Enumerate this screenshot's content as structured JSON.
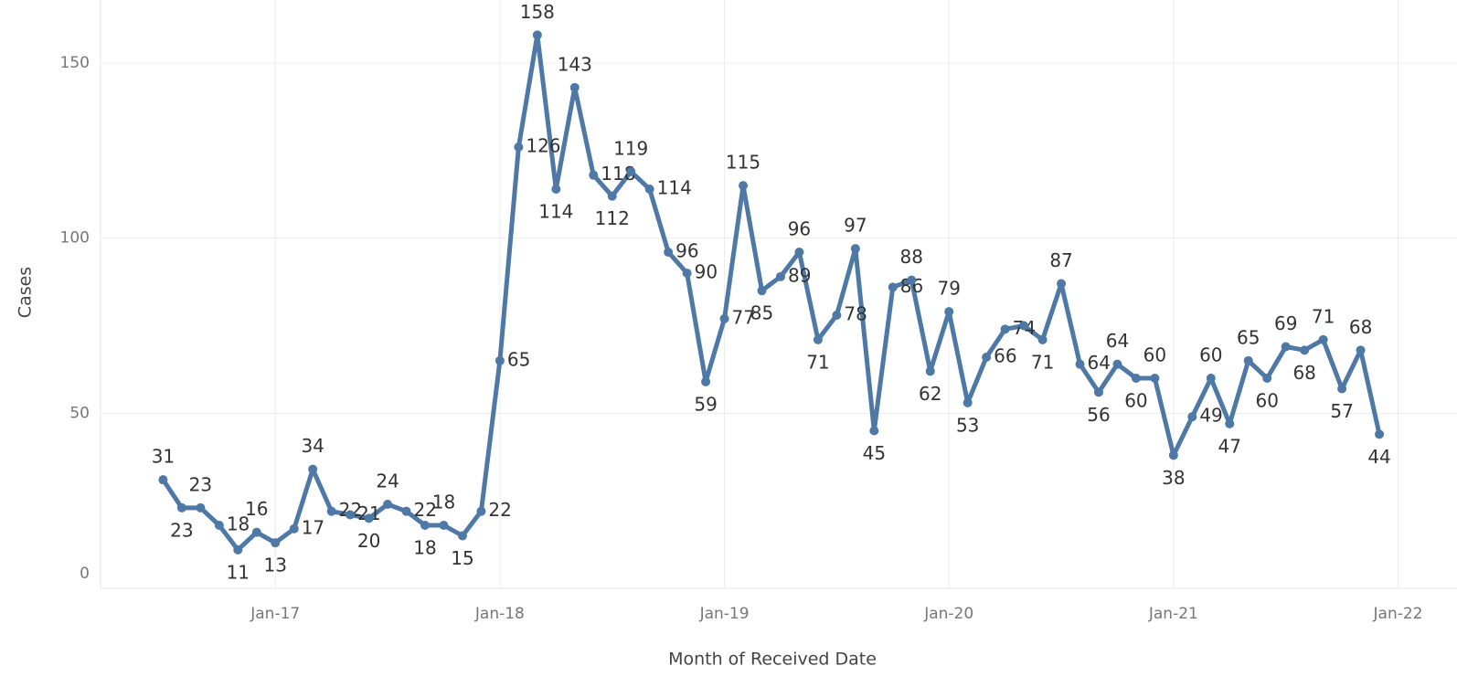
{
  "chart_data": {
    "type": "line",
    "x_label": "Month of Received Date",
    "y_label": "Cases",
    "x": [
      "2016-07",
      "2016-08",
      "2016-09",
      "2016-10",
      "2016-11",
      "2016-12",
      "2017-01",
      "2017-02",
      "2017-03",
      "2017-04",
      "2017-05",
      "2017-06",
      "2017-07",
      "2017-08",
      "2017-09",
      "2017-10",
      "2017-11",
      "2017-12",
      "2018-01",
      "2018-02",
      "2018-03",
      "2018-04",
      "2018-05",
      "2018-06",
      "2018-07",
      "2018-08",
      "2018-09",
      "2018-10",
      "2018-11",
      "2018-12",
      "2019-01",
      "2019-02",
      "2019-03",
      "2019-04",
      "2019-05",
      "2019-06",
      "2019-07",
      "2019-08",
      "2019-09",
      "2019-10",
      "2019-11",
      "2019-12",
      "2020-01",
      "2020-02",
      "2020-03",
      "2020-04",
      "2020-05",
      "2020-06",
      "2020-07",
      "2020-08",
      "2020-09",
      "2020-10",
      "2020-11",
      "2020-12",
      "2021-01",
      "2021-02",
      "2021-03",
      "2021-04",
      "2021-05",
      "2021-06",
      "2021-07",
      "2021-08",
      "2021-09",
      "2021-10",
      "2021-11",
      "2021-12"
    ],
    "series": [
      {
        "name": "Cases",
        "color": "#4e79a7",
        "values": [
          31,
          23,
          23,
          18,
          11,
          16,
          13,
          17,
          34,
          22,
          21,
          20,
          24,
          22,
          18,
          18,
          15,
          22,
          65,
          126,
          158,
          114,
          143,
          118,
          112,
          119,
          114,
          96,
          90,
          59,
          77,
          115,
          85,
          89,
          96,
          71,
          78,
          97,
          45,
          86,
          88,
          62,
          79,
          53,
          66,
          74,
          75,
          71,
          87,
          64,
          56,
          64,
          60,
          60,
          38,
          49,
          60,
          47,
          65,
          60,
          69,
          68,
          71,
          57,
          68,
          44
        ],
        "value_labels": [
          "31",
          "23",
          "23",
          "18",
          "11",
          "16",
          "13",
          "17",
          "34",
          "22",
          "21",
          "20",
          "24",
          "22",
          "18",
          "18",
          "15",
          "22",
          "65",
          "126",
          "158",
          "114",
          "143",
          "118",
          "112",
          "119",
          "114",
          "96",
          "90",
          "59",
          "77",
          "115",
          "85",
          "89",
          "96",
          "71",
          "78",
          "97",
          "45",
          "86",
          "88",
          "62",
          "79",
          "53",
          "66",
          "74",
          null,
          "71",
          "87",
          "64",
          "56",
          "64",
          "60",
          "60",
          "38",
          "49",
          "60",
          "47",
          "65",
          "60",
          "69",
          "68",
          "71",
          "57",
          "68",
          "44"
        ]
      }
    ],
    "xlim": [
      "2016-04",
      "2022-02"
    ],
    "xticks": [
      {
        "value": "2017-01",
        "label": "Jan-17"
      },
      {
        "value": "2018-01",
        "label": "Jan-18"
      },
      {
        "value": "2019-01",
        "label": "Jan-19"
      },
      {
        "value": "2020-01",
        "label": "Jan-20"
      },
      {
        "value": "2021-01",
        "label": "Jan-21"
      },
      {
        "value": "2022-01",
        "label": "Jan-22"
      }
    ],
    "ylim": [
      0,
      168
    ],
    "yticks": [
      0,
      50,
      100,
      150
    ],
    "grid": true
  }
}
